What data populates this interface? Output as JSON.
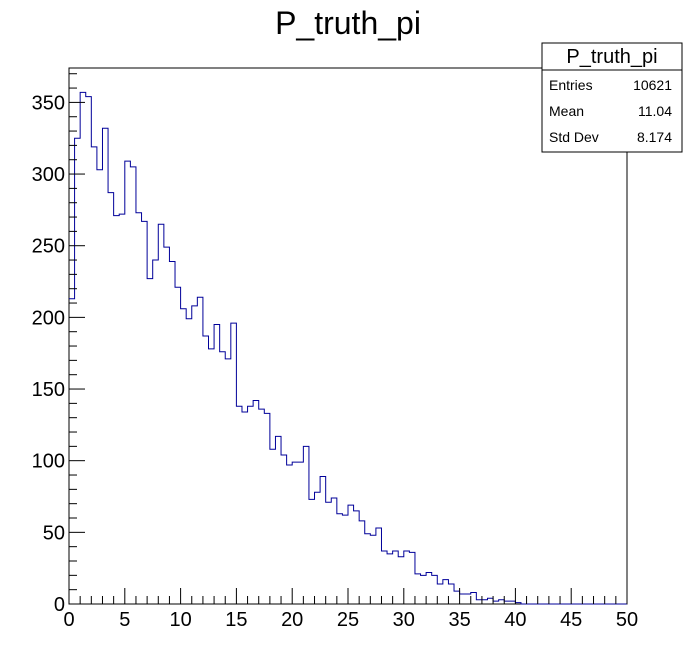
{
  "chart_data": {
    "type": "histogram",
    "title": "P_truth_pi",
    "xlabel": "",
    "ylabel": "",
    "xlim": [
      0,
      50
    ],
    "ylim": [
      0,
      374
    ],
    "x_ticks": [
      0,
      5,
      10,
      15,
      20,
      25,
      30,
      35,
      40,
      45,
      50
    ],
    "y_ticks": [
      0,
      50,
      100,
      150,
      200,
      250,
      300,
      350
    ],
    "bin_width": 0.5,
    "bin_start": 0,
    "counts": [
      213,
      325,
      357,
      354,
      319,
      303,
      332,
      287,
      271,
      272,
      309,
      305,
      273,
      267,
      227,
      240,
      265,
      249,
      239,
      221,
      206,
      199,
      208,
      214,
      187,
      178,
      195,
      176,
      171,
      196,
      138,
      134,
      138,
      142,
      136,
      133,
      108,
      117,
      104,
      97,
      99,
      99,
      110,
      73,
      78,
      89,
      71,
      74,
      63,
      62,
      69,
      65,
      58,
      49,
      48,
      53,
      37,
      35,
      37,
      33,
      37,
      36,
      21,
      20,
      22,
      20,
      14,
      17,
      14,
      9,
      7,
      7,
      8,
      3,
      3,
      4,
      2,
      3,
      2,
      2,
      1,
      0,
      0,
      0,
      0,
      0,
      0,
      0,
      0,
      0,
      0,
      0,
      0,
      0,
      0,
      0,
      0,
      0,
      0,
      0
    ],
    "line_color": "#000099",
    "grid": false,
    "stats_box": {
      "title": "P_truth_pi",
      "rows": [
        {
          "label": "Entries",
          "value": "10621"
        },
        {
          "label": "Mean",
          "value": "11.04"
        },
        {
          "label": "Std Dev",
          "value": "8.174"
        }
      ],
      "placement": "top-right"
    }
  }
}
